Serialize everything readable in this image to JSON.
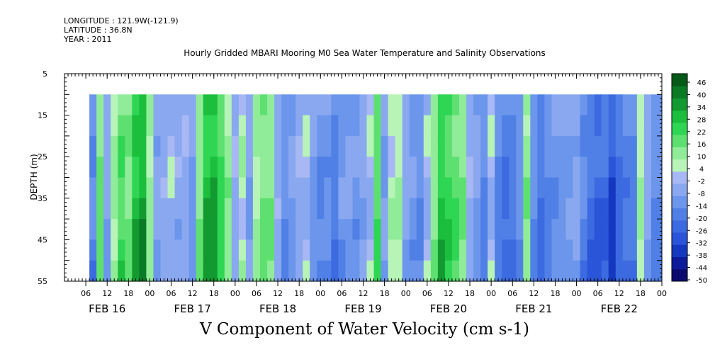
{
  "header": {
    "longitude": "LONGITUDE : 121.9W(-121.9)",
    "latitude": "LATITUDE : 36.8N",
    "year": "YEAR : 2011"
  },
  "chart_data": {
    "type": "heatmap",
    "title": "Hourly Gridded MBARI Mooring M0 Sea Water Temperature and Salinity Observations",
    "caption": "V Component of Water Velocity (cm s-1)",
    "ylabel": "DEPTH (m)",
    "ylim": [
      55,
      5
    ],
    "y_ticks": [
      5,
      15,
      25,
      35,
      45,
      55
    ],
    "xlim_hours": [
      0,
      168
    ],
    "x_hour_ticks": [
      "06",
      "12",
      "18",
      "00",
      "06",
      "12",
      "18",
      "00",
      "06",
      "12",
      "18",
      "00",
      "06",
      "12",
      "18",
      "00",
      "06",
      "12",
      "18",
      "00",
      "06",
      "12",
      "18",
      "00",
      "06",
      "12",
      "18",
      "00"
    ],
    "x_day_labels": [
      "FEB 16",
      "FEB 17",
      "FEB 18",
      "FEB 19",
      "FEB 20",
      "FEB 21",
      "FEB 22"
    ],
    "data_depth_range": [
      10,
      55
    ],
    "data_start_hour": 7,
    "colorbar": {
      "levels": [
        -50,
        -44,
        -38,
        -32,
        -26,
        -20,
        -14,
        -8,
        -2,
        4,
        10,
        16,
        22,
        28,
        34,
        40,
        46
      ],
      "label_values": [
        46,
        40,
        34,
        28,
        22,
        16,
        10,
        4,
        -2,
        -8,
        -14,
        -20,
        -26,
        -32,
        -38,
        -44,
        -50
      ],
      "negative_colors": [
        "#0a0a6e",
        "#0d1a9a",
        "#1438c0",
        "#2a55d8",
        "#3c6ae0",
        "#5080e6",
        "#6c96ec",
        "#8aa8f0",
        "#a8b8f4"
      ],
      "positive_colors": [
        "#b8f4b8",
        "#90ec98",
        "#5ee070",
        "#2ed654",
        "#1cbe3e",
        "#129a30",
        "#0b7a24",
        "#055a18"
      ]
    },
    "profile_v_cm_s": [
      [
        7,
        -14
      ],
      [
        9,
        12
      ],
      [
        11,
        -6
      ],
      [
        13,
        5
      ],
      [
        15,
        16
      ],
      [
        17,
        10
      ],
      [
        19,
        24
      ],
      [
        21,
        28
      ],
      [
        23,
        6
      ],
      [
        25,
        -6
      ],
      [
        27,
        -4
      ],
      [
        29,
        -2
      ],
      [
        31,
        -5
      ],
      [
        33,
        -4
      ],
      [
        35,
        -10
      ],
      [
        37,
        8
      ],
      [
        39,
        26
      ],
      [
        41,
        28
      ],
      [
        43,
        18
      ],
      [
        45,
        8
      ],
      [
        47,
        -4
      ],
      [
        49,
        2
      ],
      [
        51,
        -8
      ],
      [
        53,
        4
      ],
      [
        55,
        10
      ],
      [
        57,
        8
      ],
      [
        59,
        -4
      ],
      [
        61,
        -12
      ],
      [
        63,
        -8
      ],
      [
        65,
        -4
      ],
      [
        67,
        -2
      ],
      [
        69,
        -10
      ],
      [
        71,
        -14
      ],
      [
        73,
        -12
      ],
      [
        75,
        -18
      ],
      [
        77,
        -10
      ],
      [
        79,
        -8
      ],
      [
        81,
        -10
      ],
      [
        83,
        -6
      ],
      [
        85,
        -2
      ],
      [
        87,
        14
      ],
      [
        89,
        -8
      ],
      [
        91,
        2
      ],
      [
        93,
        4
      ],
      [
        95,
        -6
      ],
      [
        97,
        -10
      ],
      [
        99,
        -12
      ],
      [
        101,
        -2
      ],
      [
        103,
        8
      ],
      [
        105,
        22
      ],
      [
        107,
        18
      ],
      [
        109,
        14
      ],
      [
        111,
        10
      ],
      [
        113,
        -4
      ],
      [
        115,
        -8
      ],
      [
        117,
        -14
      ],
      [
        119,
        -2
      ],
      [
        121,
        -16
      ],
      [
        123,
        -20
      ],
      [
        125,
        -18
      ],
      [
        127,
        -12
      ],
      [
        129,
        8
      ],
      [
        131,
        -12
      ],
      [
        133,
        -20
      ],
      [
        135,
        -14
      ],
      [
        137,
        -12
      ],
      [
        139,
        -10
      ],
      [
        141,
        -8
      ],
      [
        143,
        -6
      ],
      [
        145,
        -14
      ],
      [
        147,
        -20
      ],
      [
        149,
        -24
      ],
      [
        151,
        -22
      ],
      [
        153,
        -30
      ],
      [
        155,
        -22
      ],
      [
        157,
        -18
      ],
      [
        159,
        -16
      ],
      [
        161,
        4
      ],
      [
        163,
        -6
      ],
      [
        165,
        -14
      ],
      [
        167,
        -14
      ]
    ]
  }
}
